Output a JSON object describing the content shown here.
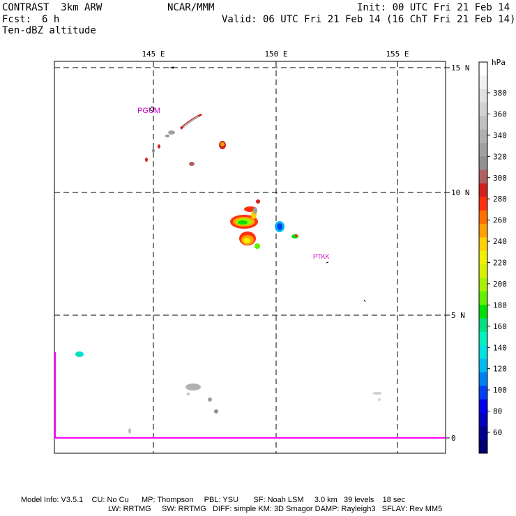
{
  "header": {
    "model_title": "CONTRAST  3km ARW",
    "org": "NCAR/MMM",
    "init": "Init: 00 UTC Fri 21 Feb 14",
    "fcst_label": "Fcst:",
    "fcst_value": "6 h",
    "valid": "Valid: 06 UTC Fri 21 Feb 14 (16 ChT Fri 21 Feb 14)",
    "field": "Ten-dBZ altitude"
  },
  "map": {
    "lon_labels": [
      "145 E",
      "150 E",
      "155 E"
    ],
    "lat_labels": [
      "15 N",
      "10 N",
      "5 N",
      "0"
    ],
    "stations": [
      {
        "id": "PGUM",
        "label": "PGUM"
      },
      {
        "id": "PTKK",
        "label": "PTKK"
      }
    ],
    "colors": {
      "station_label": "#cc00cc",
      "boundary": "#ff00ff"
    }
  },
  "colorbar": {
    "unit": "hPa",
    "labels": [
      "380",
      "360",
      "340",
      "320",
      "300",
      "280",
      "260",
      "240",
      "220",
      "200",
      "180",
      "160",
      "140",
      "120",
      "100",
      "80",
      "60"
    ],
    "colors": [
      "#ffffff",
      "#f0f0f0",
      "#e0e0e0",
      "#d0d0d0",
      "#c0c0c0",
      "#b0b0b0",
      "#a0a0a0",
      "#909090",
      "#b06060",
      "#d02020",
      "#ff3010",
      "#ff7000",
      "#ffa000",
      "#ffd000",
      "#f0f000",
      "#d8f000",
      "#a8f000",
      "#60f000",
      "#00e000",
      "#00e080",
      "#00f0c0",
      "#00e0e0",
      "#00b8f0",
      "#0080f0",
      "#0040f0",
      "#0000f0",
      "#0000c0",
      "#000090",
      "#000070"
    ]
  },
  "footer": {
    "line1": "Model Info: V3.5.1    CU: No Cu      MP: Thompson     PBL: YSU       SF: Noah LSM     3.0 km   39 levels    18 sec",
    "line2": "LW: RRTMG     SW: RRTMG   DIFF: simple KM: 3D Smagor DAMP: Rayleigh3   SFLAY: Rev MM5"
  }
}
